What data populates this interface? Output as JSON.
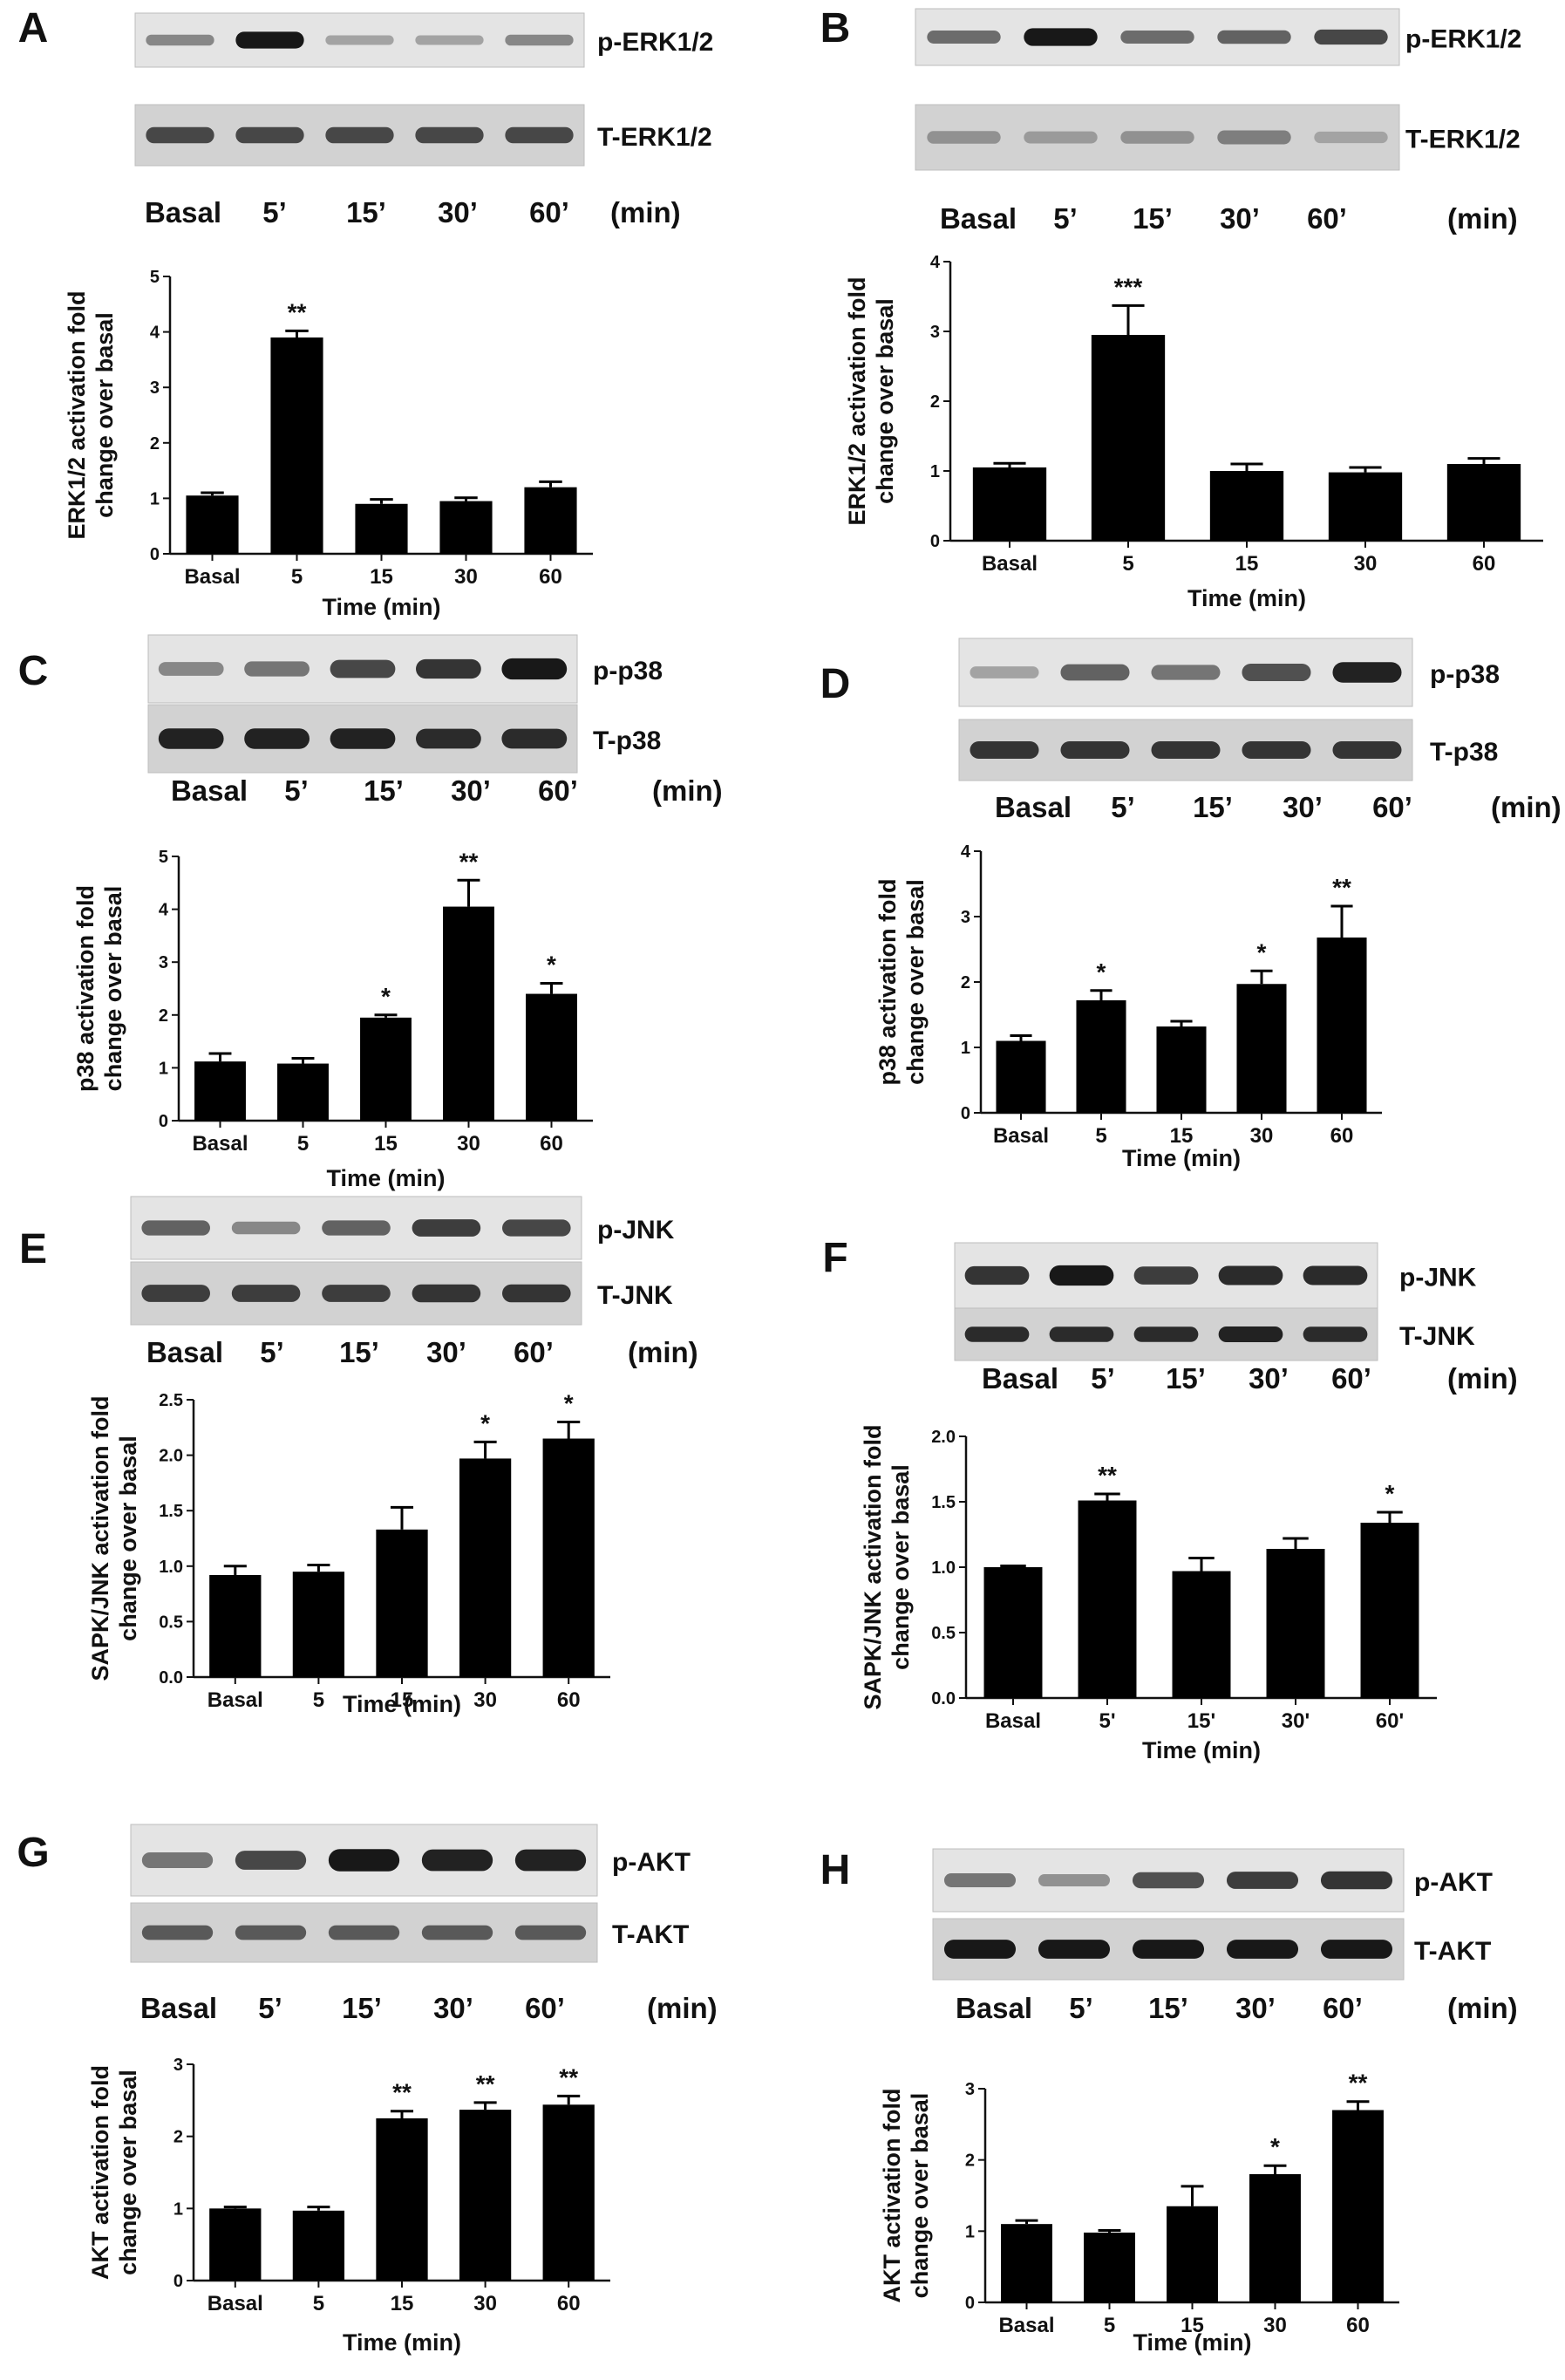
{
  "panels": [
    {
      "id": "A",
      "blot": {
        "rows": [
          "p-ERK1/2",
          "T-ERK1/2"
        ],
        "lanes": [
          "Basal",
          "5’",
          "15’",
          "30’",
          "60’"
        ],
        "unit": "(min)"
      },
      "chart_data": {
        "type": "bar",
        "categories": [
          "Basal",
          "5",
          "15",
          "30",
          "60"
        ],
        "values": [
          1.05,
          3.9,
          0.9,
          0.95,
          1.2
        ],
        "errors": [
          0.05,
          0.12,
          0.08,
          0.06,
          0.1
        ],
        "significance": [
          "",
          "**",
          "",
          "",
          ""
        ],
        "ylabel_lines": [
          "ERK1/2 activation fold",
          "change over basal"
        ],
        "xlabel": "Time (min)",
        "ylim": [
          0,
          5
        ],
        "yticks": [
          "0",
          "1",
          "2",
          "3",
          "4",
          "5"
        ]
      }
    },
    {
      "id": "B",
      "blot": {
        "rows": [
          "p-ERK1/2",
          "T-ERK1/2"
        ],
        "lanes": [
          "Basal",
          "5’",
          "15’",
          "30’",
          "60’"
        ],
        "unit": "(min)"
      },
      "chart_data": {
        "type": "bar",
        "categories": [
          "Basal",
          "5",
          "15",
          "30",
          "60"
        ],
        "values": [
          1.05,
          2.95,
          1.0,
          0.98,
          1.1
        ],
        "errors": [
          0.06,
          0.42,
          0.1,
          0.07,
          0.08
        ],
        "significance": [
          "",
          "***",
          "",
          "",
          ""
        ],
        "ylabel_lines": [
          "ERK1/2 activation fold",
          "change over basal"
        ],
        "xlabel": "Time (min)",
        "ylim": [
          0,
          4
        ],
        "yticks": [
          "0",
          "1",
          "2",
          "3",
          "4"
        ]
      }
    },
    {
      "id": "C",
      "blot": {
        "rows": [
          "p-p38",
          "T-p38"
        ],
        "lanes": [
          "Basal",
          "5’",
          "15’",
          "30’",
          "60’"
        ],
        "unit": "(min)"
      },
      "chart_data": {
        "type": "bar",
        "categories": [
          "Basal",
          "5",
          "15",
          "30",
          "60"
        ],
        "values": [
          1.12,
          1.08,
          1.95,
          4.05,
          2.4
        ],
        "errors": [
          0.15,
          0.1,
          0.05,
          0.5,
          0.2
        ],
        "significance": [
          "",
          "",
          "*",
          "**",
          "*"
        ],
        "ylabel_lines": [
          "p38 activation fold",
          "change over basal"
        ],
        "xlabel": "Time (min)",
        "ylim": [
          0,
          5
        ],
        "yticks": [
          "0",
          "1",
          "2",
          "3",
          "4",
          "5"
        ]
      }
    },
    {
      "id": "D",
      "blot": {
        "rows": [
          "p-p38",
          "T-p38"
        ],
        "lanes": [
          "Basal",
          "5’",
          "15’",
          "30’",
          "60’"
        ],
        "unit": "(min)"
      },
      "chart_data": {
        "type": "bar",
        "categories": [
          "Basal",
          "5",
          "15",
          "30",
          "60"
        ],
        "values": [
          1.1,
          1.72,
          1.32,
          1.97,
          2.68
        ],
        "errors": [
          0.08,
          0.15,
          0.08,
          0.2,
          0.48
        ],
        "significance": [
          "",
          "*",
          "",
          "*",
          "**"
        ],
        "ylabel_lines": [
          "p38 activation fold",
          "change over basal"
        ],
        "xlabel": "Time (min)",
        "ylim": [
          0,
          4
        ],
        "yticks": [
          "0",
          "1",
          "2",
          "3",
          "4"
        ]
      }
    },
    {
      "id": "E",
      "blot": {
        "rows": [
          "p-JNK",
          "T-JNK"
        ],
        "lanes": [
          "Basal",
          "5’",
          "15’",
          "30’",
          "60’"
        ],
        "unit": "(min)"
      },
      "chart_data": {
        "type": "bar",
        "categories": [
          "Basal",
          "5",
          "15",
          "30",
          "60"
        ],
        "values": [
          0.92,
          0.95,
          1.33,
          1.97,
          2.15
        ],
        "errors": [
          0.08,
          0.06,
          0.2,
          0.15,
          0.15
        ],
        "significance": [
          "",
          "",
          "",
          "*",
          "*"
        ],
        "ylabel_lines": [
          "SAPK/JNK activation fold",
          "change over basal"
        ],
        "xlabel": "Time (min)",
        "ylim": [
          0,
          2.5
        ],
        "yticks": [
          "0.0",
          "0.5",
          "1.0",
          "1.5",
          "2.0",
          "2.5"
        ]
      }
    },
    {
      "id": "F",
      "blot": {
        "rows": [
          "p-JNK",
          "T-JNK"
        ],
        "lanes": [
          "Basal",
          "5’",
          "15’",
          "30’",
          "60’"
        ],
        "unit": "(min)"
      },
      "chart_data": {
        "type": "bar",
        "categories": [
          "Basal",
          "5'",
          "15'",
          "30'",
          "60'"
        ],
        "values": [
          1.0,
          1.51,
          0.97,
          1.14,
          1.34
        ],
        "errors": [
          0.01,
          0.05,
          0.1,
          0.08,
          0.08
        ],
        "significance": [
          "",
          "**",
          "",
          "",
          "*"
        ],
        "ylabel_lines": [
          "SAPK/JNK activation fold",
          "change over basal"
        ],
        "xlabel": "Time (min)",
        "ylim": [
          0,
          2.0
        ],
        "yticks": [
          "0.0",
          "0.5",
          "1.0",
          "1.5",
          "2.0"
        ]
      }
    },
    {
      "id": "G",
      "blot": {
        "rows": [
          "p-AKT",
          "T-AKT"
        ],
        "lanes": [
          "Basal",
          "5’",
          "15’",
          "30’",
          "60’"
        ],
        "unit": "(min)"
      },
      "chart_data": {
        "type": "bar",
        "categories": [
          "Basal",
          "5",
          "15",
          "30",
          "60"
        ],
        "values": [
          1.0,
          0.97,
          2.25,
          2.37,
          2.44
        ],
        "errors": [
          0.02,
          0.05,
          0.1,
          0.1,
          0.12
        ],
        "significance": [
          "",
          "",
          "**",
          "**",
          "**"
        ],
        "ylabel_lines": [
          "AKT activation fold",
          "change over basal"
        ],
        "xlabel": "Time (min)",
        "ylim": [
          0,
          3
        ],
        "yticks": [
          "0",
          "1",
          "2",
          "3"
        ]
      }
    },
    {
      "id": "H",
      "blot": {
        "rows": [
          "p-AKT",
          "T-AKT"
        ],
        "lanes": [
          "Basal",
          "5’",
          "15’",
          "30’",
          "60’"
        ],
        "unit": "(min)"
      },
      "chart_data": {
        "type": "bar",
        "categories": [
          "Basal",
          "5",
          "15",
          "30",
          "60"
        ],
        "values": [
          1.1,
          0.98,
          1.35,
          1.8,
          2.7
        ],
        "errors": [
          0.05,
          0.03,
          0.28,
          0.12,
          0.12
        ],
        "significance": [
          "",
          "",
          "",
          "*",
          "**"
        ],
        "ylabel_lines": [
          "AKT activation fold",
          "change over basal"
        ],
        "xlabel": "Time (min)",
        "ylim": [
          0,
          3
        ],
        "yticks": [
          "0",
          "1",
          "2",
          "3"
        ]
      }
    }
  ]
}
